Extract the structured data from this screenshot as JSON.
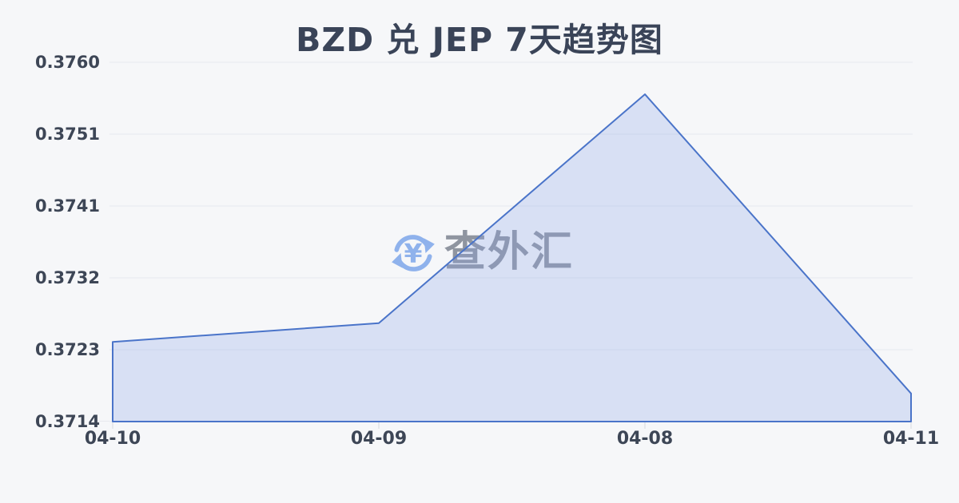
{
  "page": {
    "background": "#f6f7f9"
  },
  "chart_data": {
    "type": "area",
    "title": "BZD 兑 JEP 7天趋势图",
    "categories": [
      "04-10",
      "04-09",
      "04-08",
      "04-11"
    ],
    "values": [
      0.37242,
      0.37266,
      0.37559,
      0.37176
    ],
    "y_tick_labels": [
      "0.3760",
      "0.3751",
      "0.3741",
      "0.3732",
      "0.3723",
      "0.3714"
    ],
    "ylim": [
      0.3714,
      0.376
    ],
    "xlabel": "",
    "ylabel": "",
    "grid": "horizontal",
    "legend": "none",
    "line_color": "#4a74c9",
    "fill_color": "rgba(140,166,232,0.28)",
    "grid_color": "#e7e9ee",
    "tick_color": "#d7dade",
    "label_color": "#3d4656",
    "title_color": "#3a4458"
  },
  "watermark": {
    "text": "查外汇",
    "icon": "currency-exchange-refresh-icon",
    "icon_color": "#8fb2ec",
    "text_color": "#8f95a0"
  }
}
